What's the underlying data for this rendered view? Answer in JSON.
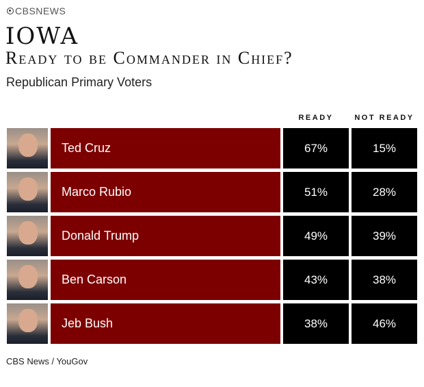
{
  "brand": "CBSNEWS",
  "title": "IOWA",
  "subtitle": "Ready to be Commander in Chief?",
  "group": "Republican Primary Voters",
  "source": "CBS News / YouGov",
  "colors": {
    "name_bar": "#7d0000",
    "value_cell": "#000000"
  },
  "chart_data": {
    "type": "table",
    "columns": [
      "READY",
      "NOT READY"
    ],
    "rows": [
      {
        "name": "Ted Cruz",
        "ready": "67%",
        "not_ready": "15%"
      },
      {
        "name": "Marco Rubio",
        "ready": "51%",
        "not_ready": "28%"
      },
      {
        "name": "Donald Trump",
        "ready": "49%",
        "not_ready": "39%"
      },
      {
        "name": "Ben Carson",
        "ready": "43%",
        "not_ready": "38%"
      },
      {
        "name": "Jeb Bush",
        "ready": "38%",
        "not_ready": "46%"
      }
    ]
  }
}
